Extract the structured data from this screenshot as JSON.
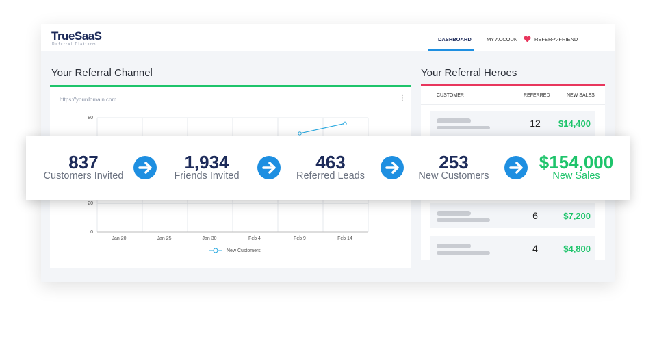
{
  "header": {
    "logo": "TrueSaaS",
    "tagline": "Referral Platform",
    "nav": [
      "DASHBOARD",
      "MY ACCOUNT",
      "REFER-A-FRIEND"
    ]
  },
  "channel": {
    "title": "Your Referral Channel",
    "url": "https://yourdomain.com",
    "chart": {
      "type": "line",
      "categories": [
        "Jan 20",
        "Jan 25",
        "Jan 30",
        "Feb 4",
        "Feb 9",
        "Feb 14"
      ],
      "series": [
        {
          "name": "New Customers",
          "color": "#29a9e0",
          "values": [
            null,
            null,
            null,
            null,
            69,
            76
          ]
        }
      ],
      "ylim": [
        0,
        80
      ],
      "yticks": [
        0,
        20,
        80
      ],
      "grid": true
    }
  },
  "heroes": {
    "title": "Your Referral Heroes",
    "columns": [
      "CUSTOMER",
      "REFERRED",
      "NEW SALES"
    ],
    "rows": [
      [
        "12",
        "$14,400"
      ],
      [
        "6",
        "$7,200"
      ],
      [
        "4",
        "$4,800"
      ]
    ]
  },
  "stats": [
    {
      "value": "837",
      "label": "Customers Invited"
    },
    {
      "value": "1,934",
      "label": "Friends Invited"
    },
    {
      "value": "463",
      "label": "Referred Leads"
    },
    {
      "value": "253",
      "label": "New Customers"
    },
    {
      "value": "$154,000",
      "label": "New Sales"
    }
  ]
}
